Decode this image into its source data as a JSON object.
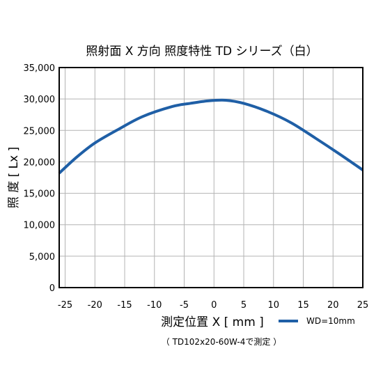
{
  "chart_data": {
    "type": "line",
    "title": "照射面 X 方向 照度特性  TD シリーズ（白）",
    "xlabel": "測定位置 X [ mm ]",
    "ylabel": "照 度 [ Lx ]",
    "xlim": [
      -26,
      25
    ],
    "ylim": [
      0,
      35000
    ],
    "x_ticks": [
      -25,
      -20,
      -15,
      -10,
      -5,
      0,
      5,
      10,
      15,
      20,
      25
    ],
    "x_tick_labels": [
      "-25",
      "-20",
      "-15",
      "-10",
      "-5",
      "0",
      "5",
      "10",
      "15",
      "20",
      "25"
    ],
    "y_ticks": [
      0,
      5000,
      10000,
      15000,
      20000,
      25000,
      30000,
      35000
    ],
    "y_tick_labels": [
      "0",
      "5,000",
      "10,000",
      "15,000",
      "20,000",
      "25,000",
      "30,000",
      "35,000"
    ],
    "grid": true,
    "legend_position": "bottom-right, beside x-axis label",
    "series": [
      {
        "name": "WD=10mm",
        "color": "#1f5fa6",
        "x": [
          -26,
          -23,
          -20,
          -16,
          -12,
          -7,
          -4,
          -1,
          2,
          5,
          9,
          13,
          17,
          21,
          25
        ],
        "y": [
          18200,
          20800,
          23000,
          25200,
          27200,
          28800,
          29300,
          29700,
          29800,
          29300,
          28000,
          26200,
          23800,
          21300,
          18700
        ]
      }
    ],
    "footnote": "（ TD102x20-60W-4で測定 ）"
  }
}
